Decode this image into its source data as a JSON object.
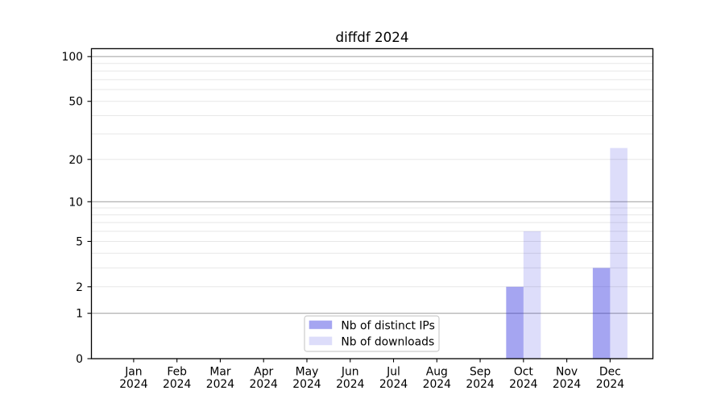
{
  "chart_data": {
    "type": "bar",
    "title": "diffdf 2024",
    "categories": [
      "Jan",
      "Feb",
      "Mar",
      "Apr",
      "May",
      "Jun",
      "Jul",
      "Aug",
      "Sep",
      "Oct",
      "Nov",
      "Dec"
    ],
    "category_sublabel": "2024",
    "series": [
      {
        "name": "Nb of distinct IPs",
        "color": "rgba(30,30,220,0.40)",
        "values": [
          0,
          0,
          0,
          0,
          0,
          0,
          0,
          0,
          0,
          2,
          0,
          3
        ]
      },
      {
        "name": "Nb of downloads",
        "color": "rgba(30,30,220,0.15)",
        "values": [
          0,
          0,
          0,
          0,
          0,
          0,
          0,
          0,
          0,
          6,
          0,
          24
        ]
      }
    ],
    "xlabel": "",
    "ylabel": "",
    "yscale": "log10(1+x)",
    "ylim": [
      0,
      113
    ],
    "yticks": [
      0,
      1,
      2,
      5,
      10,
      20,
      50,
      100
    ],
    "gridlines_major": [
      1,
      10,
      100
    ],
    "gridlines_minor": [
      2,
      3,
      4,
      5,
      6,
      7,
      8,
      9,
      20,
      30,
      40,
      50,
      60,
      70,
      80,
      90
    ],
    "grid": true,
    "legend_position": "lower center"
  },
  "colors": {
    "background": "#ffffff",
    "spine": "#000000",
    "text": "#000000",
    "grid_major": "#a8a8a8",
    "grid_minor": "#e7e7e7",
    "legend_border": "#cccccc",
    "legend_background": "#ffffff"
  }
}
